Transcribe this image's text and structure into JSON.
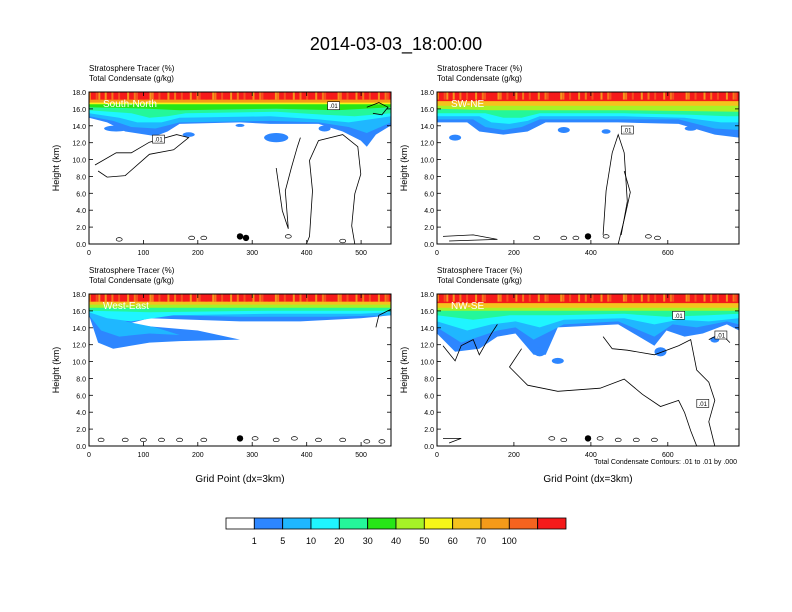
{
  "figure_title": "2014-03-03_18:00:00",
  "footnote": "Total Condensate Contours: .01 to .01 by .000",
  "colorbar": {
    "labels": [
      "1",
      "5",
      "10",
      "20",
      "30",
      "40",
      "50",
      "60",
      "70",
      "100"
    ],
    "colors": [
      "#ffffff",
      "#2d86ff",
      "#1fb7ff",
      "#1ff5ff",
      "#24f79a",
      "#27e617",
      "#a6f227",
      "#f7f718",
      "#f5c21d",
      "#f59a19",
      "#f5631f",
      "#f51a1a"
    ]
  },
  "chart_data": [
    {
      "type": "heatmap",
      "title_line1": "Stratosphere Tracer   (%)",
      "title_line2": "Total Condensate   (g/kg)",
      "panel_label": "South-North",
      "xlabel": "",
      "ylabel": "Height (km)",
      "xlim": [
        0,
        555
      ],
      "ylim": [
        0,
        18
      ],
      "xticks": [
        "0",
        "100",
        "200",
        "300",
        "400",
        "500"
      ],
      "yticks": [
        "0.0",
        "2.0",
        "4.0",
        "6.0",
        "8.0",
        "10.0",
        "12.0",
        "14.0",
        "16.0",
        "18.0"
      ],
      "contour_labels": [
        ".01",
        ".01"
      ]
    },
    {
      "type": "heatmap",
      "title_line1": "Stratosphere Tracer   (%)",
      "title_line2": "Total Condensate   (g/kg)",
      "panel_label": "SW-NE",
      "xlabel": "",
      "ylabel": "Height (km)",
      "xlim": [
        0,
        785
      ],
      "ylim": [
        0,
        18
      ],
      "xticks": [
        "0",
        "200",
        "400",
        "600"
      ],
      "yticks": [
        "0.0",
        "2.0",
        "4.0",
        "6.0",
        "8.0",
        "10.0",
        "12.0",
        "14.0",
        "16.0",
        "18.0"
      ],
      "contour_labels": [
        ".01"
      ]
    },
    {
      "type": "heatmap",
      "title_line1": "Stratosphere Tracer   (%)",
      "title_line2": "Total Condensate   (g/kg)",
      "panel_label": "West-East",
      "xlabel": "Grid Point (dx=3km)",
      "ylabel": "Height (km)",
      "xlim": [
        0,
        555
      ],
      "ylim": [
        0,
        18
      ],
      "xticks": [
        "0",
        "100",
        "200",
        "300",
        "400",
        "500"
      ],
      "yticks": [
        "0.0",
        "2.0",
        "4.0",
        "6.0",
        "8.0",
        "10.0",
        "12.0",
        "14.0",
        "16.0",
        "18.0"
      ],
      "contour_labels": []
    },
    {
      "type": "heatmap",
      "title_line1": "Stratosphere Tracer   (%)",
      "title_line2": "Total Condensate   (g/kg)",
      "panel_label": "NW-SE",
      "xlabel": "Grid Point (dx=3km)",
      "ylabel": "Height (km)",
      "xlim": [
        0,
        785
      ],
      "ylim": [
        0,
        18
      ],
      "xticks": [
        "0",
        "200",
        "400",
        "600"
      ],
      "yticks": [
        "0.0",
        "2.0",
        "4.0",
        "6.0",
        "8.0",
        "10.0",
        "12.0",
        "14.0",
        "16.0",
        "18.0"
      ],
      "contour_labels": [
        ".01",
        ".01",
        ".01"
      ]
    }
  ]
}
